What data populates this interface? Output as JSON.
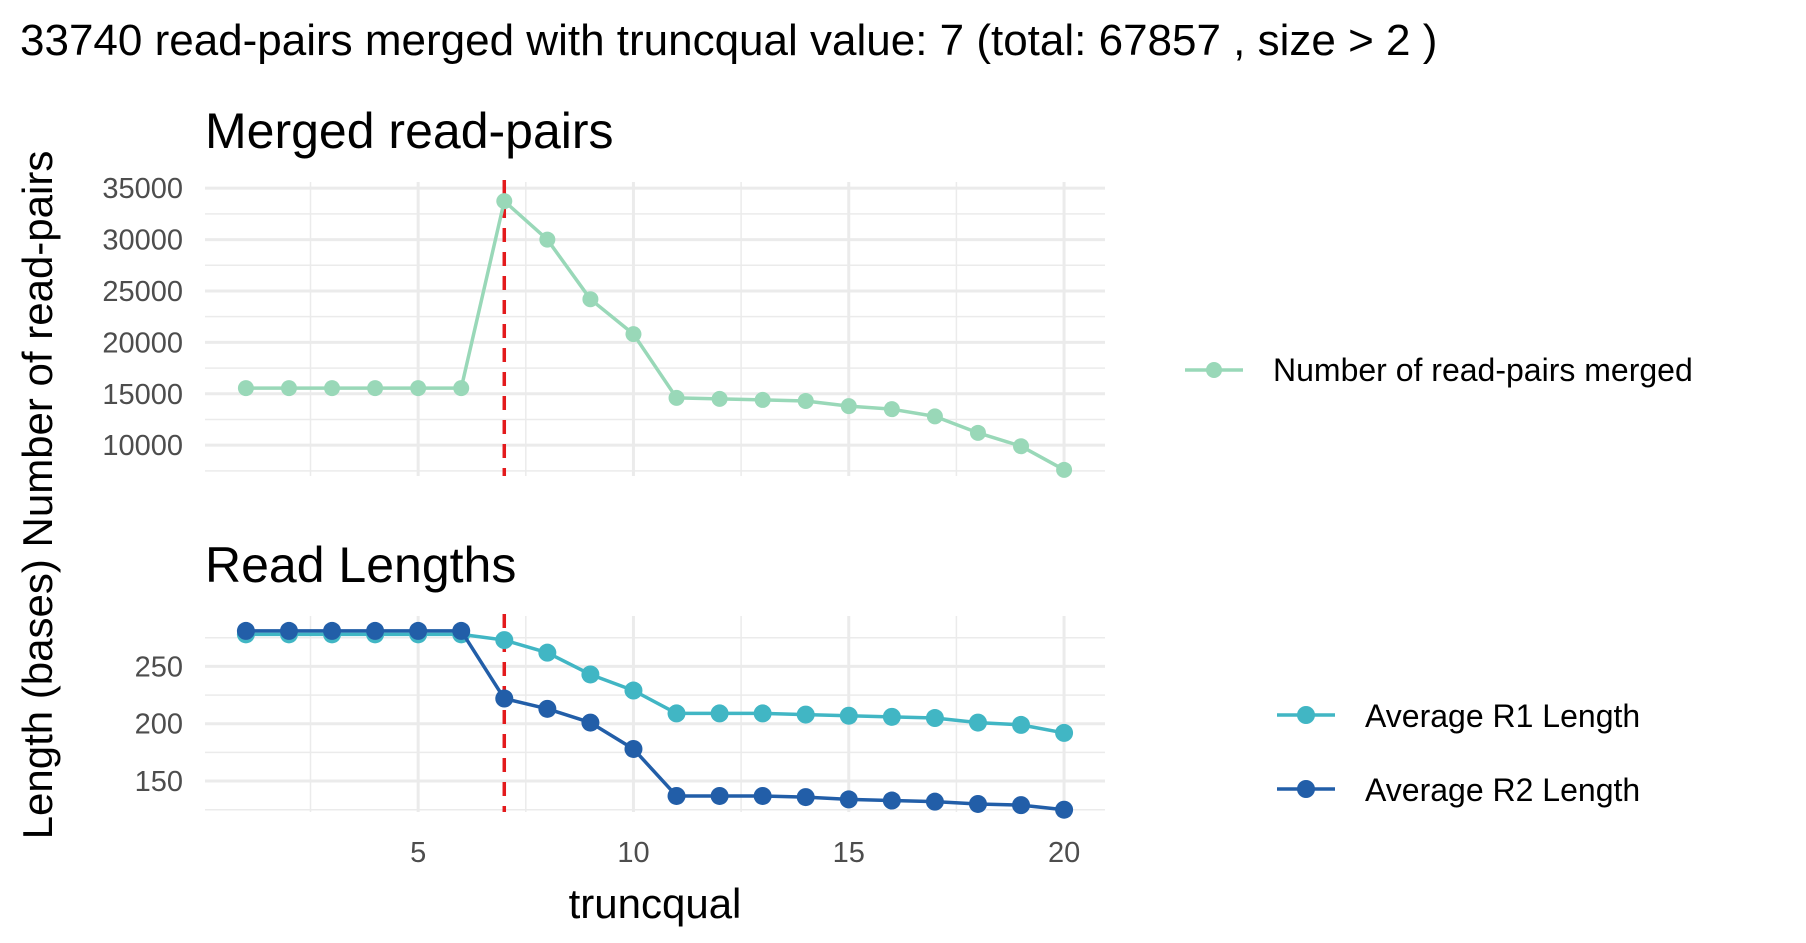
{
  "figure": {
    "title": "33740 read-pairs merged with truncqual value: 7 (total: 67857 , size > 2 )",
    "ylabel": "Length (bases) Number of read-pairs",
    "xlabel": "truncqual"
  },
  "colors": {
    "merged": "#99d8b8",
    "r1": "#41b6c4",
    "r2": "#225ea8",
    "cutoff": "#e31a1c",
    "grid": "#ebebeb"
  },
  "chart_data": [
    {
      "type": "line",
      "title": "Merged read-pairs",
      "xlim": [
        0.05,
        20.95
      ],
      "ylim": [
        7000,
        35600
      ],
      "x_ticks": [
        5,
        10,
        15,
        20
      ],
      "y_ticks": [
        10000,
        15000,
        20000,
        25000,
        30000,
        35000
      ],
      "y_tick_labels": [
        "10000",
        "15000",
        "20000",
        "25000",
        "30000",
        "35000"
      ],
      "grid": true,
      "cutoff_x": 7,
      "series": [
        {
          "name": "Number of read-pairs merged",
          "color": "#99d8b8",
          "x": [
            1,
            2,
            3,
            4,
            5,
            6,
            7,
            8,
            9,
            10,
            11,
            12,
            13,
            14,
            15,
            16,
            17,
            18,
            19,
            20
          ],
          "values": [
            15550,
            15550,
            15550,
            15550,
            15550,
            15550,
            33740,
            30000,
            24200,
            20800,
            14600,
            14500,
            14400,
            14300,
            13800,
            13500,
            12800,
            11200,
            9900,
            7600
          ]
        }
      ],
      "legend_position": "right"
    },
    {
      "type": "line",
      "title": "Read Lengths",
      "xlim": [
        0.05,
        20.95
      ],
      "ylim": [
        123,
        294
      ],
      "x_ticks": [
        5,
        10,
        15,
        20
      ],
      "x_tick_labels": [
        "5",
        "10",
        "15",
        "20"
      ],
      "y_ticks": [
        150,
        200,
        250
      ],
      "y_tick_labels": [
        "150",
        "200",
        "250"
      ],
      "grid": true,
      "cutoff_x": 7,
      "series": [
        {
          "name": "Average R1 Length",
          "color": "#41b6c4",
          "x": [
            1,
            2,
            3,
            4,
            5,
            6,
            7,
            8,
            9,
            10,
            11,
            12,
            13,
            14,
            15,
            16,
            17,
            18,
            19,
            20
          ],
          "values": [
            278,
            278,
            278,
            278,
            278,
            278,
            273,
            262,
            243,
            229,
            209,
            209,
            209,
            208,
            207,
            206,
            205,
            201,
            199,
            192
          ]
        },
        {
          "name": "Average R2 Length",
          "color": "#225ea8",
          "x": [
            1,
            2,
            3,
            4,
            5,
            6,
            7,
            8,
            9,
            10,
            11,
            12,
            13,
            14,
            15,
            16,
            17,
            18,
            19,
            20
          ],
          "values": [
            281,
            281,
            281,
            281,
            281,
            281,
            222,
            213,
            201,
            178,
            137,
            137,
            137,
            136,
            134,
            133,
            132,
            130,
            129,
            125
          ]
        }
      ],
      "legend_position": "right"
    }
  ]
}
